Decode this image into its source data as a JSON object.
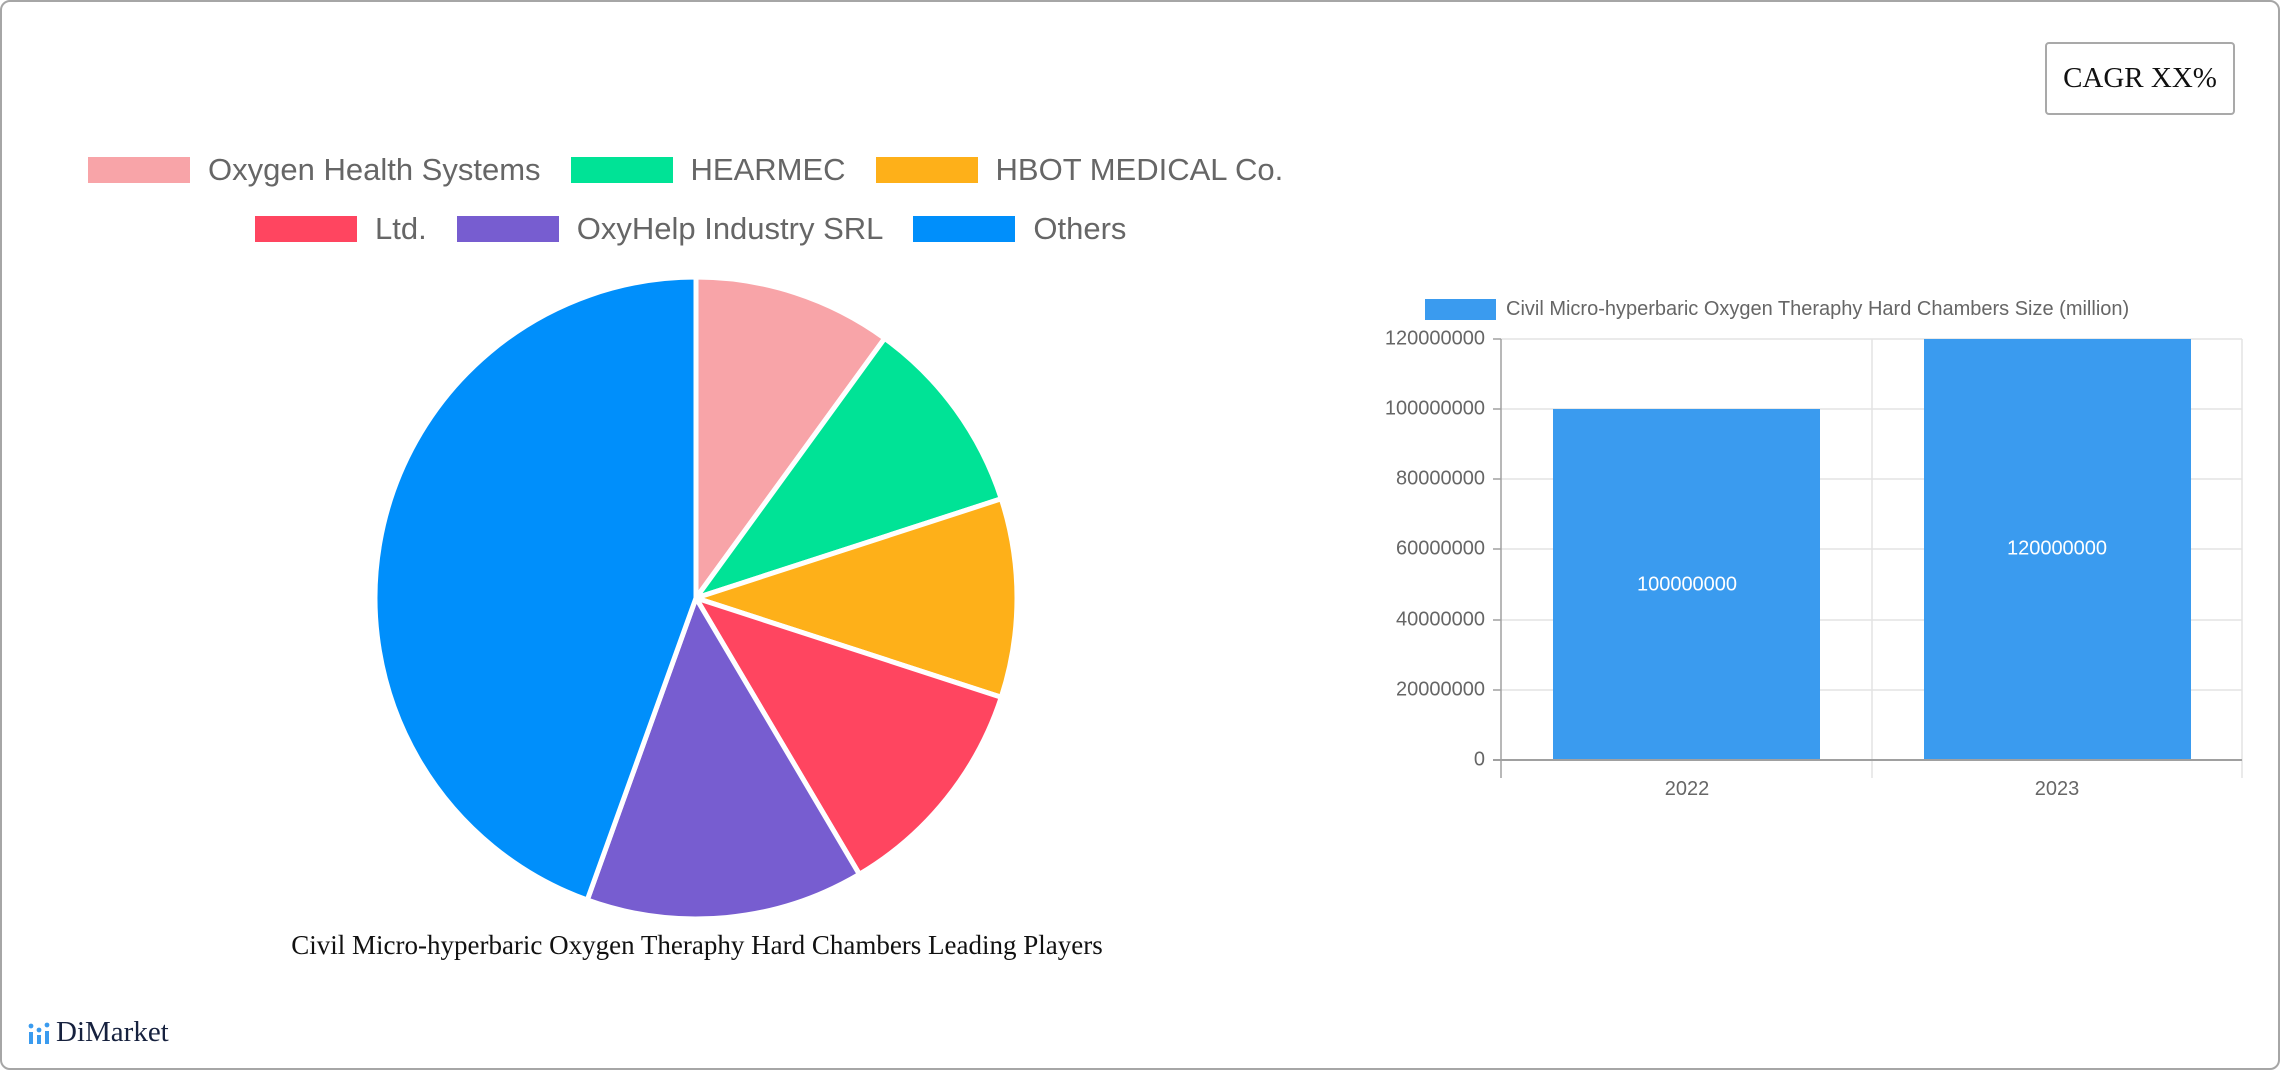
{
  "cagr_badge": {
    "label": "CAGR XX%"
  },
  "pie_legend": {
    "rows": [
      [
        {
          "label": "Oxygen Health Systems",
          "color": "#f8a4a8"
        },
        {
          "label": "HEARMEC",
          "color": "#00e396"
        },
        {
          "label": "HBOT MEDICAL Co.",
          "color": "#feb019"
        }
      ],
      [
        {
          "label": "Ltd.",
          "color": "#ff4560"
        },
        {
          "label": "OxyHelp Industry SRL",
          "color": "#775dd0"
        },
        {
          "label": "Others",
          "color": "#008ffb"
        }
      ]
    ]
  },
  "pie_title": "Civil Micro-hyperbaric Oxygen Theraphy Hard Chambers Leading Players",
  "bar_legend": {
    "label": "Civil Micro-hyperbaric Oxygen Theraphy Hard Chambers Size (million)",
    "color": "#3a9bef"
  },
  "y_ticks": [
    "120000000",
    "100000000",
    "80000000",
    "60000000",
    "40000000",
    "20000000",
    "0"
  ],
  "x_ticks": [
    "2022",
    "2023"
  ],
  "bar_values": [
    "100000000",
    "120000000"
  ],
  "logo": {
    "text": "DiMarket"
  },
  "chart_data": [
    {
      "type": "pie",
      "title": "Civil Micro-hyperbaric Oxygen Theraphy Hard Chambers Leading Players",
      "categories": [
        "Oxygen Health Systems",
        "HEARMEC",
        "HBOT MEDICAL Co.",
        "Ltd.",
        "OxyHelp Industry SRL",
        "Others"
      ],
      "values": [
        10,
        10,
        10,
        11.5,
        14,
        44.5
      ],
      "colors": [
        "#f8a4a8",
        "#00e396",
        "#feb019",
        "#ff4560",
        "#775dd0",
        "#008ffb"
      ],
      "legend_position": "top",
      "unit": "percent share (estimated from slice angles)"
    },
    {
      "type": "bar",
      "title": "",
      "categories": [
        "2022",
        "2023"
      ],
      "series": [
        {
          "name": "Civil Micro-hyperbaric Oxygen Theraphy Hard Chambers Size (million)",
          "values": [
            100000000,
            120000000
          ]
        }
      ],
      "xlabel": "",
      "ylabel": "",
      "ylim": [
        0,
        120000000
      ],
      "y_ticks": [
        0,
        20000000,
        40000000,
        60000000,
        80000000,
        100000000,
        120000000
      ],
      "grid": true,
      "legend_position": "top",
      "data_labels": true
    }
  ]
}
